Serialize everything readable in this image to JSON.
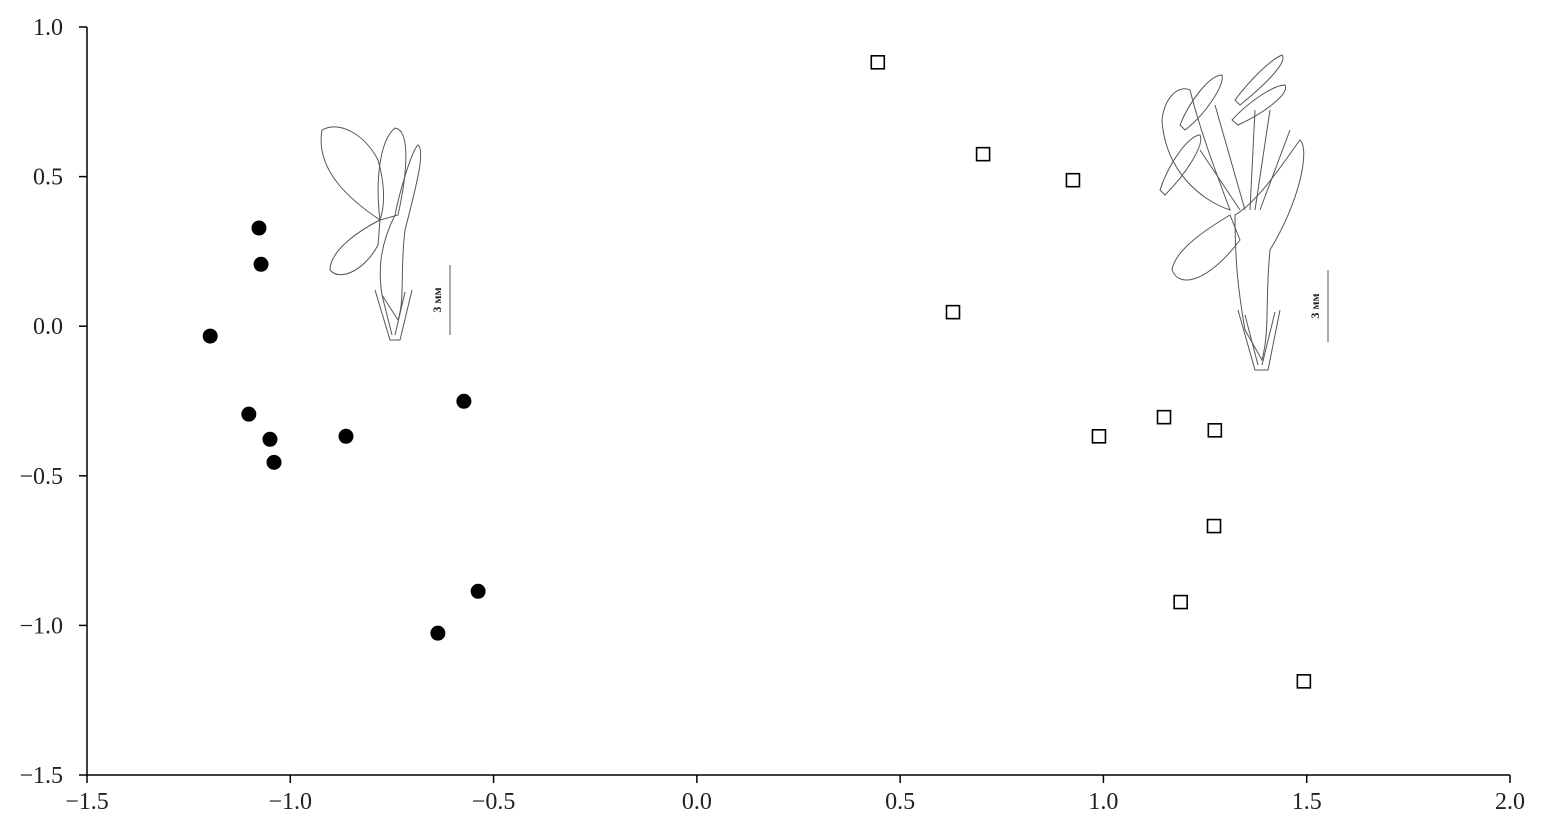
{
  "chart_data": {
    "type": "scatter",
    "xlim": [
      -1.5,
      2.0
    ],
    "ylim": [
      -1.5,
      1.0
    ],
    "xticks": [
      {
        "value": -1.5,
        "label": "−1.5"
      },
      {
        "value": -1.0,
        "label": "−1.0"
      },
      {
        "value": -0.5,
        "label": "−0.5"
      },
      {
        "value": 0,
        "label": "0.0"
      },
      {
        "value": 0.5,
        "label": "0.5"
      },
      {
        "value": 1.0,
        "label": "1.0"
      },
      {
        "value": 1.5,
        "label": "1.5"
      },
      {
        "value": 2.0,
        "label": "2.0"
      }
    ],
    "yticks": [
      {
        "value": -1.5,
        "label": "−1.5"
      },
      {
        "value": -1.0,
        "label": "−1.0"
      },
      {
        "value": -0.5,
        "label": "−0.5"
      },
      {
        "value": 0,
        "label": "0.0"
      },
      {
        "value": 0.5,
        "label": "0.5"
      },
      {
        "value": 1.0,
        "label": "1.0"
      }
    ],
    "series": [
      {
        "marker": "circle",
        "color": "#000000",
        "x": [
          -1.077,
          -1.072,
          -1.197,
          -1.102,
          -1.05,
          -1.04,
          -0.863,
          -0.573,
          -0.538,
          -0.637
        ],
        "values": [
          0.328,
          0.207,
          -0.033,
          -0.294,
          -0.378,
          -0.455,
          -0.368,
          -0.251,
          -0.886,
          -1.026
        ]
      },
      {
        "marker": "square",
        "color": "#000000",
        "x": [
          0.445,
          0.704,
          0.925,
          0.63,
          0.989,
          1.149,
          1.274,
          1.272,
          1.19,
          1.493
        ],
        "values": [
          0.882,
          0.575,
          0.488,
          0.047,
          -0.368,
          -0.304,
          -0.348,
          -0.668,
          -0.922,
          -1.187
        ]
      }
    ],
    "annotations": [
      "3 мм",
      "3 мм"
    ]
  }
}
